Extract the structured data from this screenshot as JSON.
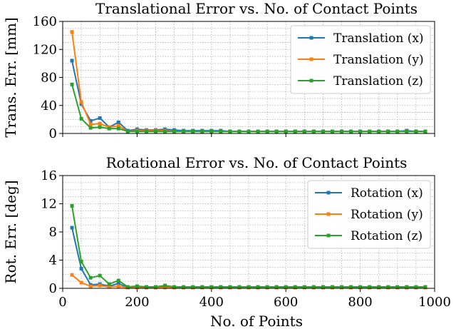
{
  "chart_data": [
    {
      "type": "line",
      "title": "Translational Error vs. No. of Contact Points",
      "xlabel": "",
      "ylabel": "Trans. Err. [mm]",
      "xlim": [
        0,
        1000
      ],
      "ylim": [
        0,
        160
      ],
      "xticks": [
        0,
        200,
        400,
        600,
        800,
        1000
      ],
      "xtick_labels_visible": false,
      "yticks": [
        0,
        40,
        80,
        120,
        160
      ],
      "ytick_labels": [
        "0",
        "40",
        "80",
        "120",
        "160"
      ],
      "grid": true,
      "legend_position": "top-right",
      "x": [
        25,
        50,
        75,
        100,
        125,
        150,
        175,
        200,
        225,
        250,
        275,
        300,
        325,
        350,
        375,
        400,
        425,
        450,
        475,
        500,
        525,
        550,
        575,
        600,
        625,
        650,
        675,
        700,
        725,
        750,
        775,
        800,
        825,
        850,
        875,
        900,
        925,
        950,
        975
      ],
      "series": [
        {
          "name": "Translation (x)",
          "color": "#1f77b4",
          "values": [
            104,
            42,
            18,
            22,
            9,
            16,
            4,
            6,
            5,
            5,
            6,
            5,
            4,
            4,
            4,
            4,
            4,
            3,
            3,
            3,
            3,
            3,
            3,
            3,
            3,
            3,
            3,
            3,
            3,
            3,
            3,
            3,
            3,
            3,
            3,
            3,
            4,
            3,
            3
          ]
        },
        {
          "name": "Translation (y)",
          "color": "#ff7f0e",
          "values": [
            145,
            45,
            13,
            14,
            9,
            11,
            3,
            4,
            4,
            4,
            4,
            3,
            3,
            3,
            3,
            3,
            3,
            3,
            3,
            3,
            3,
            3,
            3,
            3,
            3,
            3,
            3,
            3,
            3,
            3,
            3,
            3,
            3,
            3,
            3,
            3,
            3,
            3,
            3
          ]
        },
        {
          "name": "Translation (z)",
          "color": "#2ca02c",
          "values": [
            70,
            21,
            8,
            9,
            7,
            7,
            3,
            3,
            3,
            3,
            3,
            3,
            3,
            3,
            3,
            3,
            3,
            3,
            3,
            3,
            3,
            3,
            3,
            3,
            3,
            3,
            3,
            3,
            3,
            3,
            3,
            3,
            3,
            3,
            3,
            3,
            3,
            3,
            3
          ]
        }
      ]
    },
    {
      "type": "line",
      "title": "Rotational Error vs. No. of Contact Points",
      "xlabel": "No. of Points",
      "ylabel": "Rot. Err. [deg]",
      "xlim": [
        0,
        1000
      ],
      "ylim": [
        0,
        16
      ],
      "xticks": [
        0,
        200,
        400,
        600,
        800,
        1000
      ],
      "xtick_labels": [
        "0",
        "200",
        "400",
        "600",
        "800",
        "1000"
      ],
      "yticks": [
        0,
        4,
        8,
        12,
        16
      ],
      "ytick_labels": [
        "0",
        "4",
        "8",
        "12",
        "16"
      ],
      "grid": true,
      "legend_position": "top-right",
      "x": [
        25,
        50,
        75,
        100,
        125,
        150,
        175,
        200,
        225,
        250,
        275,
        300,
        325,
        350,
        375,
        400,
        425,
        450,
        475,
        500,
        525,
        550,
        575,
        600,
        625,
        650,
        675,
        700,
        725,
        750,
        775,
        800,
        825,
        850,
        875,
        900,
        925,
        950,
        975
      ],
      "series": [
        {
          "name": "Rotation (x)",
          "color": "#1f77b4",
          "values": [
            8.6,
            2.8,
            0.5,
            0.6,
            0.3,
            0.7,
            0.1,
            0.2,
            0.1,
            0.1,
            0.2,
            0.1,
            0.1,
            0.1,
            0.1,
            0.1,
            0.1,
            0.1,
            0.1,
            0.1,
            0.1,
            0.1,
            0.1,
            0.1,
            0.1,
            0.1,
            0.1,
            0.1,
            0.1,
            0.1,
            0.1,
            0.1,
            0.1,
            0.1,
            0.1,
            0.1,
            0.1,
            0.1,
            0.1
          ]
        },
        {
          "name": "Rotation (y)",
          "color": "#ff7f0e",
          "values": [
            1.9,
            0.8,
            0.3,
            0.4,
            0.2,
            0.3,
            0.1,
            0.1,
            0.1,
            0.1,
            0.1,
            0.1,
            0.1,
            0.1,
            0.1,
            0.1,
            0.1,
            0.1,
            0.1,
            0.1,
            0.1,
            0.1,
            0.1,
            0.1,
            0.1,
            0.1,
            0.1,
            0.1,
            0.1,
            0.1,
            0.1,
            0.1,
            0.1,
            0.1,
            0.1,
            0.1,
            0.1,
            0.1,
            0.1
          ]
        },
        {
          "name": "Rotation (z)",
          "color": "#2ca02c",
          "values": [
            11.7,
            3.8,
            1.5,
            1.8,
            0.6,
            1.1,
            0.2,
            0.3,
            0.2,
            0.2,
            0.4,
            0.2,
            0.2,
            0.2,
            0.2,
            0.2,
            0.2,
            0.2,
            0.2,
            0.2,
            0.2,
            0.2,
            0.2,
            0.2,
            0.2,
            0.2,
            0.2,
            0.2,
            0.2,
            0.2,
            0.2,
            0.2,
            0.2,
            0.2,
            0.2,
            0.2,
            0.2,
            0.2,
            0.2
          ]
        }
      ]
    }
  ]
}
